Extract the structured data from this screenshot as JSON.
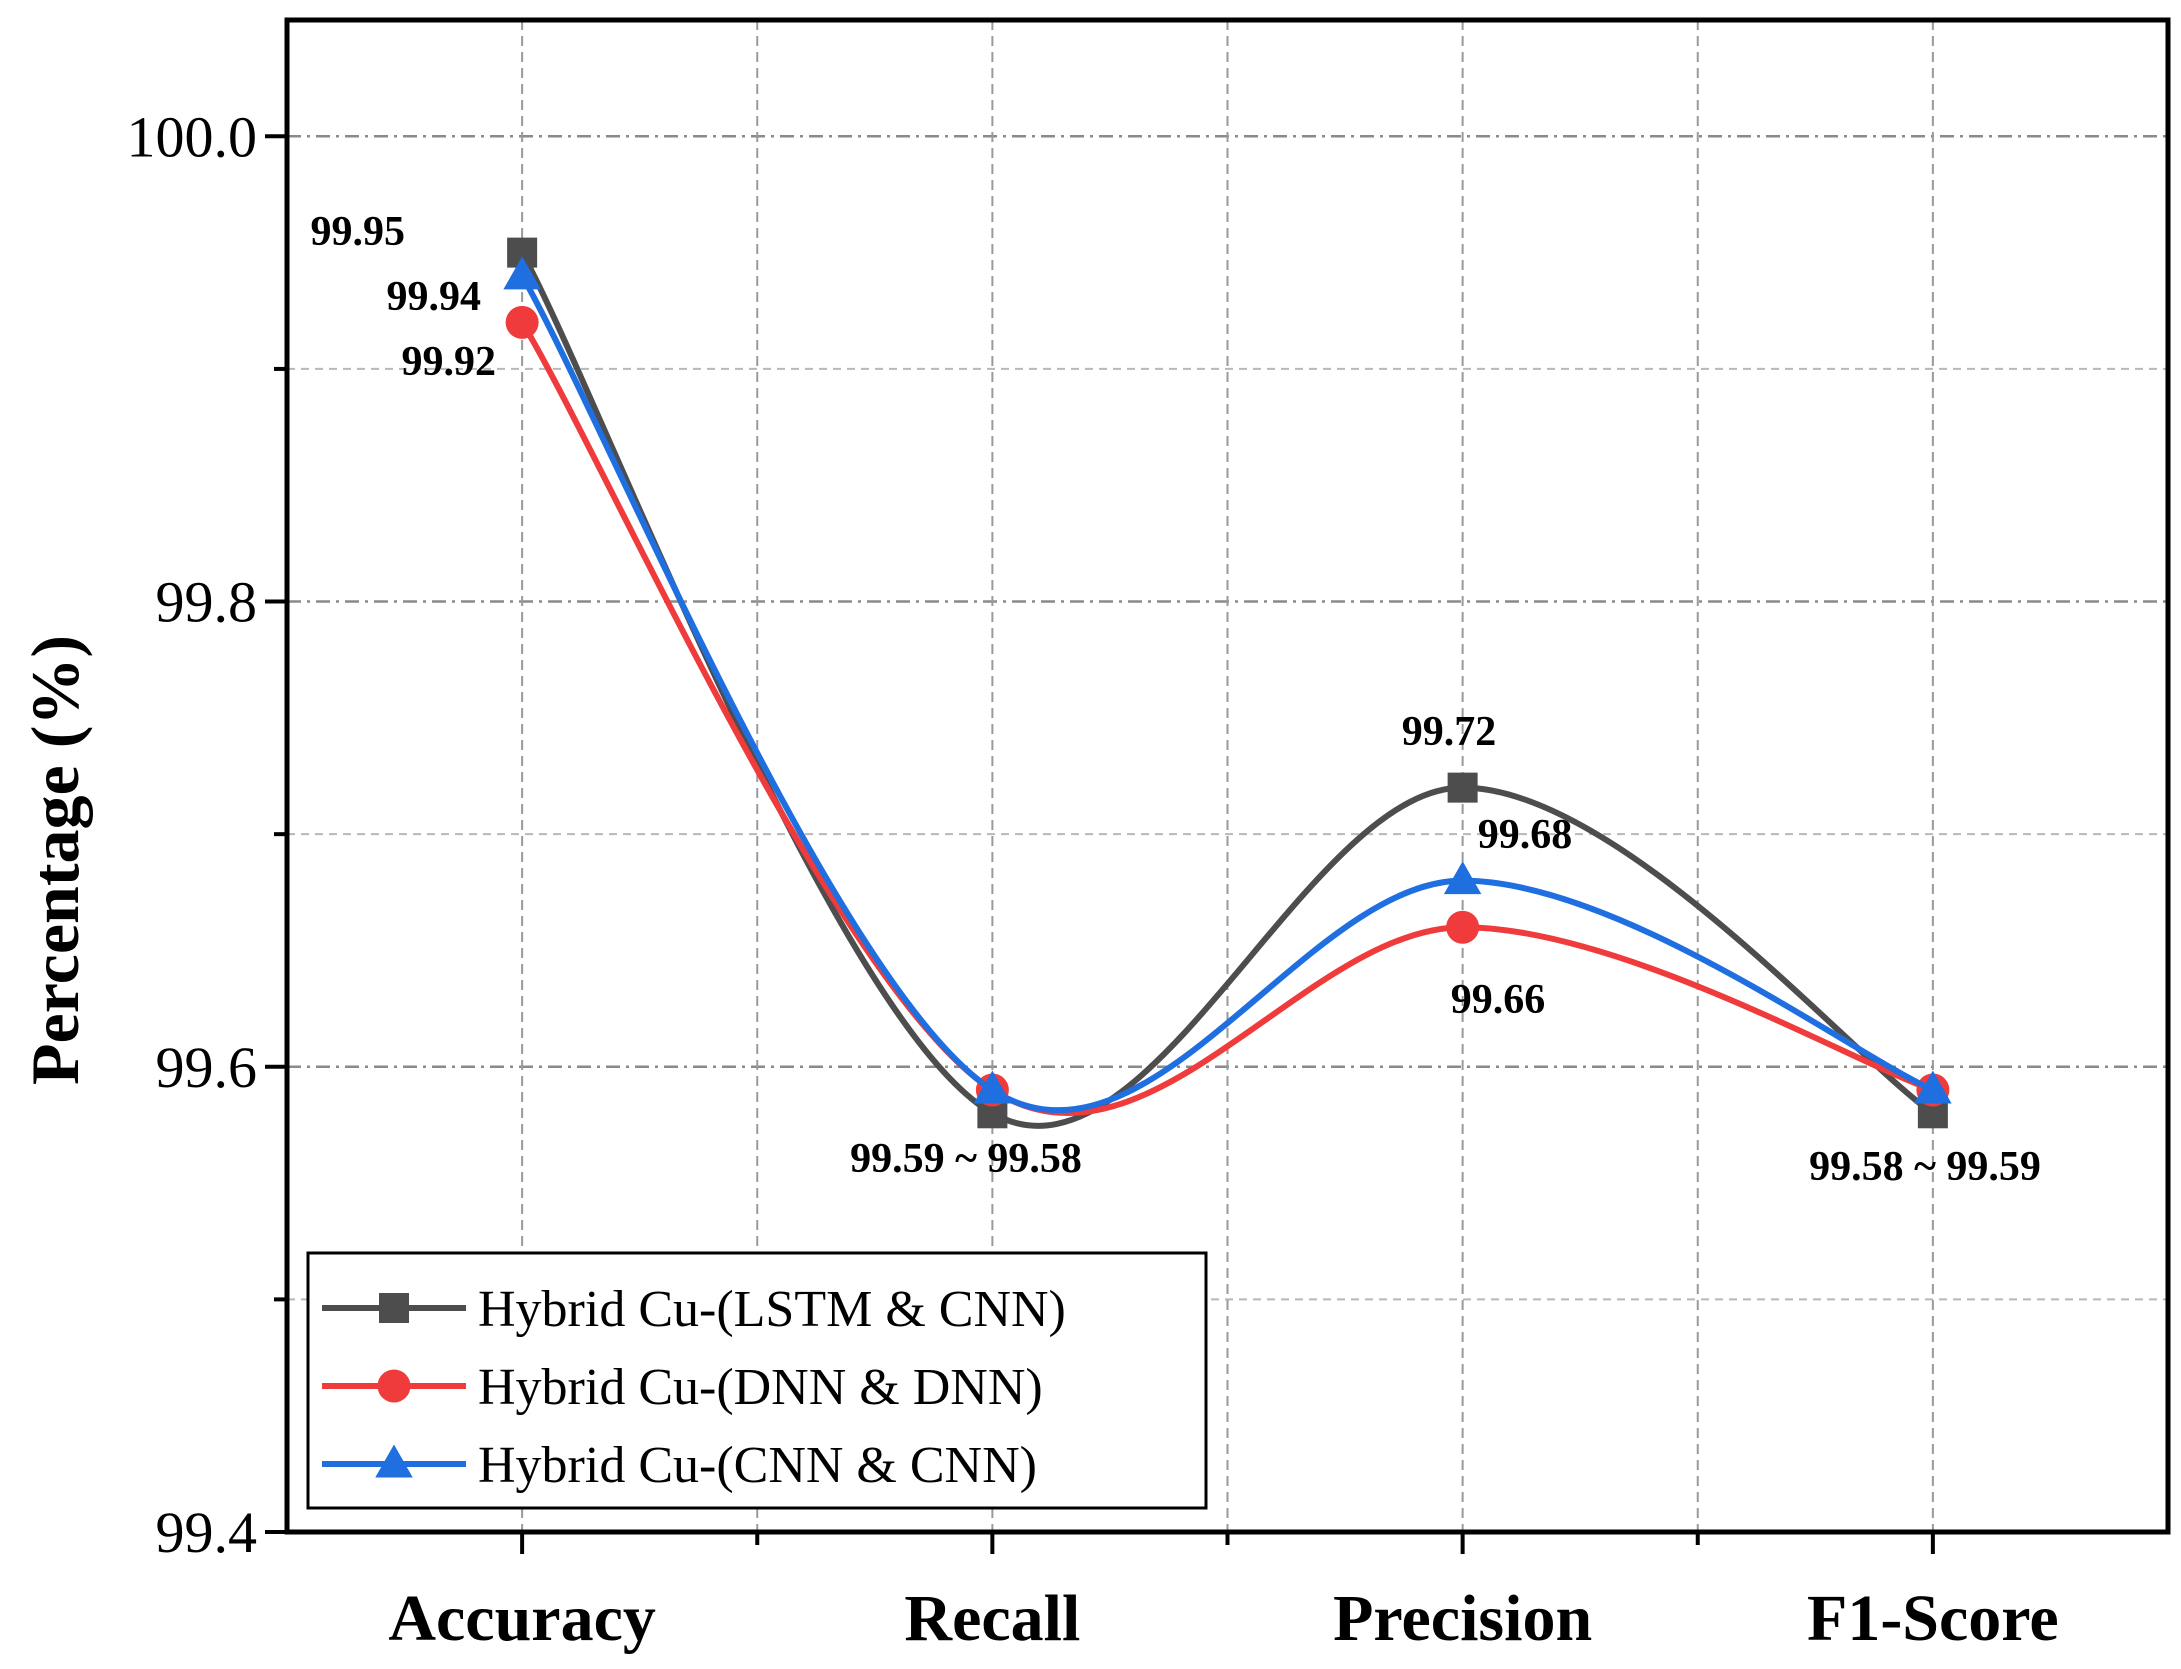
{
  "chart_data": {
    "type": "line",
    "smooth": true,
    "categories": [
      "Accuracy",
      "Recall",
      "Precision",
      "F1-Score"
    ],
    "ylabel": "Percentage (%)",
    "xlabel": "",
    "ylim": [
      99.4,
      100.05
    ],
    "yticks": [
      99.4,
      99.6,
      99.8,
      100.0
    ],
    "ytick_labels": [
      "99.4",
      "99.6",
      "99.8",
      "100.0"
    ],
    "yminor": [
      99.5,
      99.7,
      99.9
    ],
    "grid": true,
    "legend_position": "bottom-left",
    "series": [
      {
        "name": "Hybrid Cu-(LSTM & CNN)",
        "color": "#4d4d4d",
        "marker": "square",
        "values": [
          99.95,
          99.58,
          99.72,
          99.58
        ]
      },
      {
        "name": "Hybrid Cu-(DNN & DNN)",
        "color": "#ef3b3b",
        "marker": "circle",
        "values": [
          99.92,
          99.59,
          99.66,
          99.59
        ]
      },
      {
        "name": "Hybrid Cu-(CNN & CNN)",
        "color": "#1f6fe0",
        "marker": "triangle",
        "values": [
          99.94,
          99.59,
          99.68,
          99.59
        ]
      }
    ],
    "annotations": [
      {
        "text": "99.95"
      },
      {
        "text": "99.94"
      },
      {
        "text": "99.92"
      },
      {
        "text": "99.59 ~ 99.58"
      },
      {
        "text": "99.72"
      },
      {
        "text": "99.68"
      },
      {
        "text": "99.66"
      },
      {
        "text": "99.58 ~ 99.59"
      }
    ]
  }
}
